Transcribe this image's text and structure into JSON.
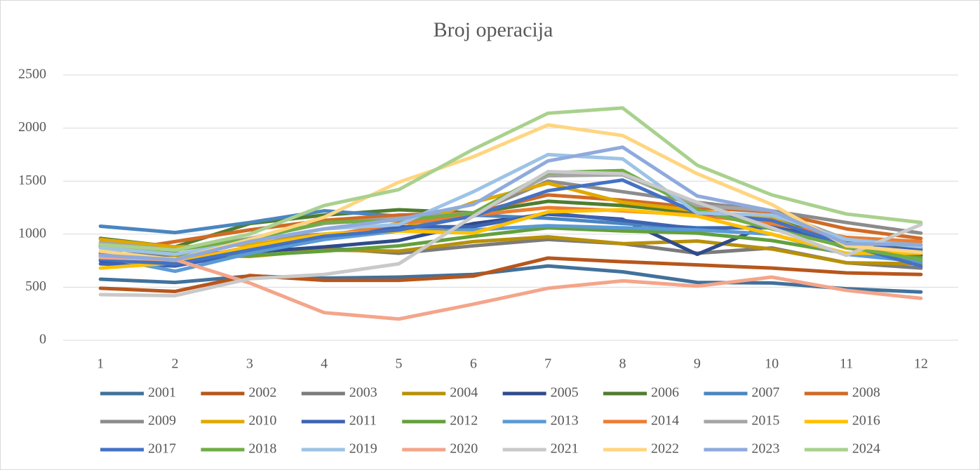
{
  "chart_data": {
    "type": "line",
    "title": "Broj operacija",
    "categories": [
      1,
      2,
      3,
      4,
      5,
      6,
      7,
      8,
      9,
      10,
      11,
      12
    ],
    "ylim": [
      0,
      2500
    ],
    "yticks": [
      0,
      500,
      1000,
      1500,
      2000,
      2500
    ],
    "grid": true,
    "legend": "bottom",
    "series": [
      {
        "name": "2001",
        "color": "#41719c",
        "values": [
          575,
          545,
          605,
          585,
          595,
          620,
          700,
          645,
          545,
          540,
          485,
          455
        ]
      },
      {
        "name": "2002",
        "color": "#b7561c",
        "values": [
          490,
          460,
          610,
          565,
          565,
          605,
          775,
          740,
          710,
          680,
          635,
          620
        ]
      },
      {
        "name": "2003",
        "color": "#7b7b7b",
        "values": [
          820,
          800,
          840,
          870,
          820,
          890,
          950,
          910,
          820,
          870,
          730,
          680
        ]
      },
      {
        "name": "2004",
        "color": "#b8900a",
        "values": [
          900,
          800,
          790,
          850,
          840,
          930,
          975,
          910,
          935,
          860,
          730,
          720
        ]
      },
      {
        "name": "2005",
        "color": "#2f4b8a",
        "values": [
          750,
          700,
          830,
          880,
          940,
          1100,
          1190,
          1140,
          810,
          1100,
          870,
          800
        ]
      },
      {
        "name": "2006",
        "color": "#4f7d30",
        "values": [
          960,
          880,
          1100,
          1180,
          1230,
          1200,
          1310,
          1270,
          1200,
          1150,
          930,
          870
        ]
      },
      {
        "name": "2007",
        "color": "#4a86c0",
        "values": [
          1075,
          1015,
          1110,
          1220,
          1170,
          1180,
          1150,
          1100,
          1060,
          1060,
          910,
          830
        ]
      },
      {
        "name": "2008",
        "color": "#d06a25",
        "values": [
          820,
          930,
          1040,
          1130,
          1180,
          1200,
          1370,
          1320,
          1250,
          1210,
          1050,
          960
        ]
      },
      {
        "name": "2009",
        "color": "#8c8c8c",
        "values": [
          900,
          860,
          950,
          1000,
          1050,
          1200,
          1500,
          1400,
          1300,
          1220,
          1110,
          1010
        ]
      },
      {
        "name": "2010",
        "color": "#e0a800",
        "values": [
          950,
          880,
          900,
          1000,
          1040,
          1300,
          1480,
          1300,
          1220,
          1150,
          870,
          830
        ]
      },
      {
        "name": "2011",
        "color": "#3d63b4",
        "values": [
          720,
          700,
          830,
          960,
          1070,
          1070,
          1200,
          1130,
          1050,
          1070,
          900,
          850
        ]
      },
      {
        "name": "2012",
        "color": "#63a03c",
        "values": [
          880,
          820,
          800,
          840,
          890,
          980,
          1060,
          1030,
          1010,
          940,
          820,
          780
        ]
      },
      {
        "name": "2013",
        "color": "#5b9bd5",
        "values": [
          790,
          650,
          820,
          950,
          1030,
          1040,
          1080,
          1060,
          1040,
          1000,
          810,
          740
        ]
      },
      {
        "name": "2014",
        "color": "#ed7d31",
        "values": [
          800,
          740,
          880,
          980,
          1100,
          1180,
          1250,
          1220,
          1180,
          1100,
          970,
          930
        ]
      },
      {
        "name": "2015",
        "color": "#a5a5a5",
        "values": [
          920,
          850,
          960,
          1100,
          1150,
          1200,
          1550,
          1560,
          1270,
          1220,
          950,
          900
        ]
      },
      {
        "name": "2016",
        "color": "#ffc000",
        "values": [
          680,
          730,
          880,
          1000,
          1030,
          1010,
          1210,
          1230,
          1170,
          1000,
          820,
          820
        ]
      },
      {
        "name": "2017",
        "color": "#4472c4",
        "values": [
          760,
          720,
          850,
          980,
          1040,
          1170,
          1410,
          1510,
          1200,
          1130,
          900,
          700
        ]
      },
      {
        "name": "2018",
        "color": "#70ad47",
        "values": [
          890,
          850,
          950,
          1110,
          1130,
          1200,
          1580,
          1600,
          1230,
          1050,
          880,
          760
        ]
      },
      {
        "name": "2019",
        "color": "#9dc3e6",
        "values": [
          870,
          810,
          930,
          1050,
          1090,
          1400,
          1750,
          1710,
          1200,
          1180,
          950,
          880
        ]
      },
      {
        "name": "2020",
        "color": "#f4a58a",
        "values": [
          780,
          760,
          540,
          260,
          200,
          340,
          490,
          560,
          510,
          595,
          470,
          395
        ]
      },
      {
        "name": "2021",
        "color": "#c9c9c9",
        "values": [
          430,
          420,
          580,
          620,
          720,
          1170,
          1590,
          1570,
          1300,
          1060,
          800,
          1090
        ]
      },
      {
        "name": "2022",
        "color": "#ffd580",
        "values": [
          840,
          760,
          950,
          1160,
          1490,
          1730,
          2030,
          1930,
          1570,
          1280,
          890,
          830
        ]
      },
      {
        "name": "2023",
        "color": "#8faadc",
        "values": [
          800,
          760,
          930,
          1050,
          1140,
          1280,
          1690,
          1820,
          1360,
          1220,
          910,
          900
        ]
      },
      {
        "name": "2024",
        "color": "#a9d18e",
        "values": [
          900,
          850,
          1000,
          1270,
          1420,
          1800,
          2140,
          2190,
          1650,
          1370,
          1190,
          1110
        ]
      }
    ]
  }
}
